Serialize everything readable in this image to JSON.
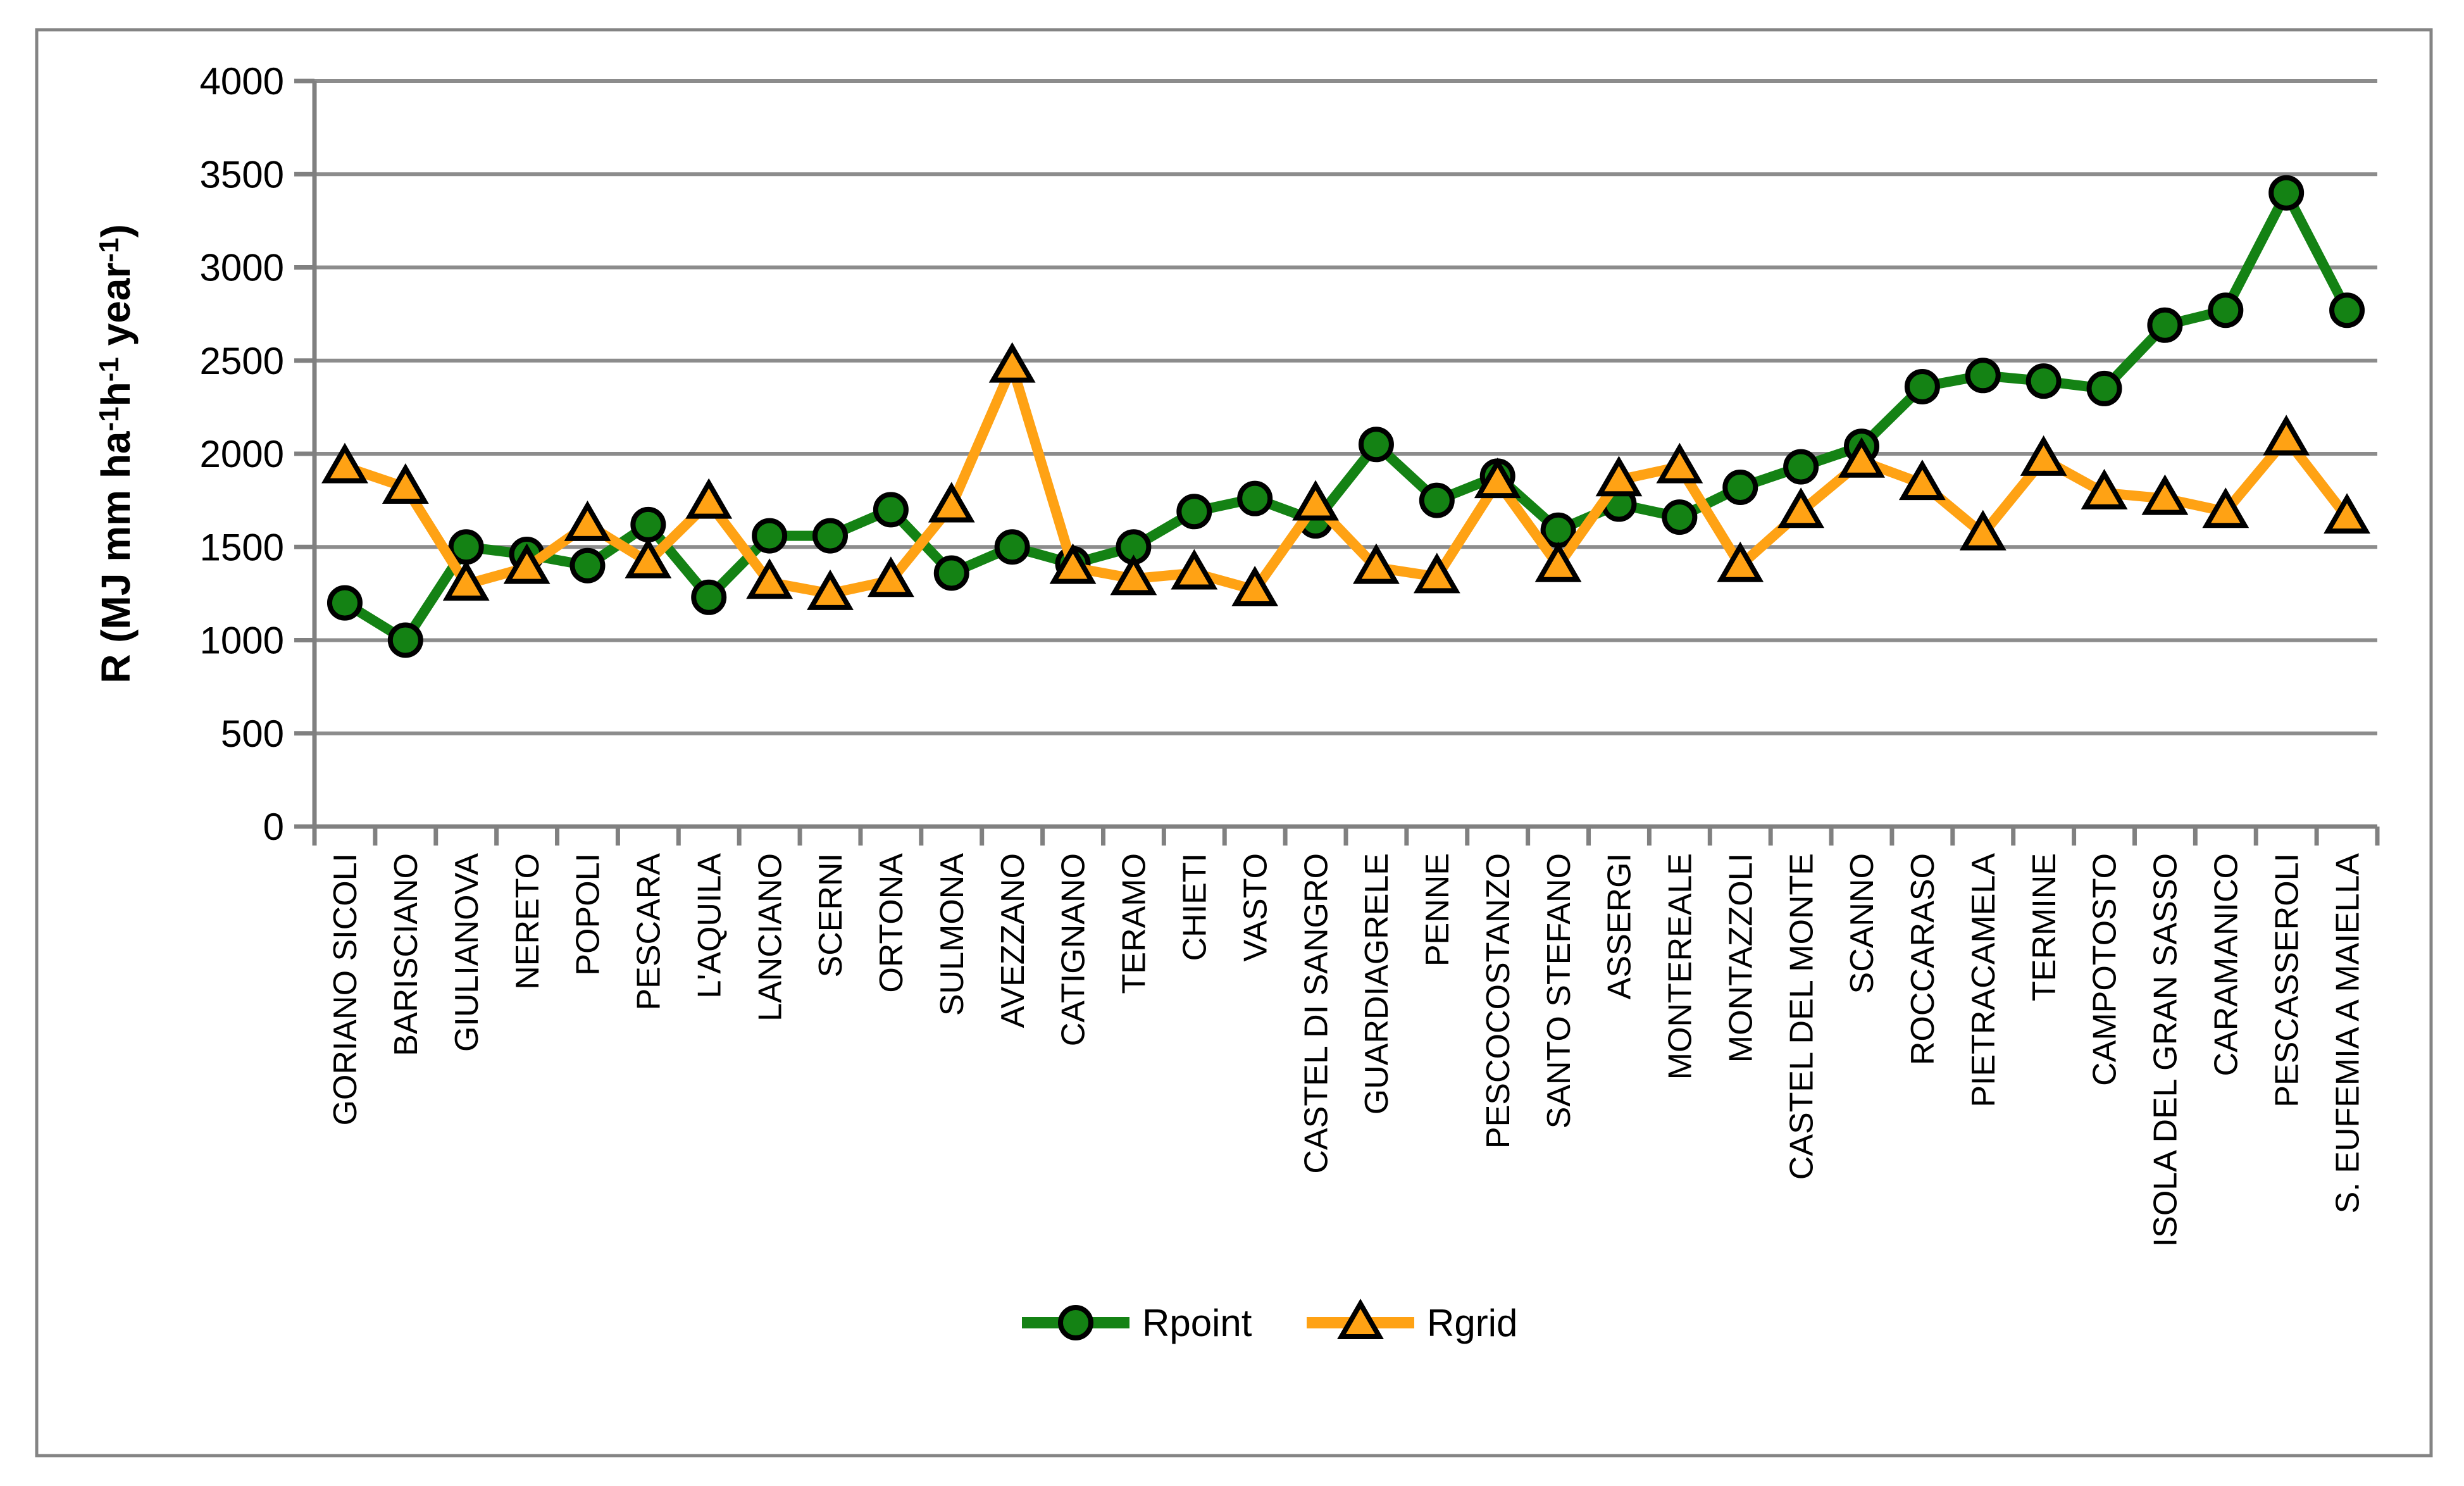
{
  "figure": {
    "background": "#FFFFFF",
    "border_color": "#848484"
  },
  "chart_data": {
    "type": "line",
    "title": "",
    "xlabel": "",
    "ylabel": "R (MJ mm ha-1h-1 year-1)",
    "ylabel_parts": [
      {
        "t": "R (MJ mm ha",
        "sup": false
      },
      {
        "t": "-1",
        "sup": true
      },
      {
        "t": "h",
        "sup": false
      },
      {
        "t": "-1",
        "sup": true
      },
      {
        "t": " year",
        "sup": false
      },
      {
        "t": "-1",
        "sup": true
      },
      {
        "t": ")",
        "sup": false
      }
    ],
    "ylim": [
      0,
      4000
    ],
    "ytick_step": 500,
    "ytick_labels": [
      "0",
      "500",
      "1000",
      "1500",
      "2000",
      "2500",
      "3000",
      "3500",
      "4000"
    ],
    "grid": true,
    "legend_position": "bottom-center",
    "gridline_color": "#8C8C8C",
    "axis_color": "#808080",
    "marker_outline": "#000000",
    "categories": [
      "GORIANO SICOLI",
      "BARISCIANO",
      "GIULIANOVA",
      "NERETO",
      "POPOLI",
      "PESCARA",
      "L'AQUILA",
      "LANCIANO",
      "SCERNI",
      "ORTONA",
      "SULMONA",
      "AVEZZANO",
      "CATIGNANO",
      "TERAMO",
      "CHIETI",
      "VASTO",
      "CASTEL DI SANGRO",
      "GUARDIAGRELE",
      "PENNE",
      "PESCOCOSTANZO",
      "SANTO STEFANO",
      "ASSERGI",
      "MONTEREALE",
      "MONTAZZOLI",
      "CASTEL DEL MONTE",
      "SCANNO",
      "ROCCARASO",
      "PIETRACAMELA",
      "TERMINE",
      "CAMPOTOSTO",
      "ISOLA DEL GRAN SASSO",
      "CARAMANICO",
      "PESCASSEROLI",
      "S. EUFEMIA A MAIELLA"
    ],
    "series": [
      {
        "name": "Rpoint",
        "color": "#148214",
        "marker": "circle",
        "values": [
          1200,
          1000,
          1500,
          1460,
          1400,
          1620,
          1230,
          1560,
          1560,
          1700,
          1360,
          1500,
          1410,
          1500,
          1690,
          1760,
          1640,
          2050,
          1750,
          1880,
          1590,
          1730,
          1660,
          1820,
          1930,
          2040,
          2360,
          2420,
          2390,
          2350,
          2690,
          2770,
          3400,
          2770
        ]
      },
      {
        "name": "Rgrid",
        "color": "#FFA214",
        "marker": "triangle",
        "values": [
          1930,
          1820,
          1300,
          1390,
          1620,
          1420,
          1740,
          1310,
          1250,
          1320,
          1720,
          2470,
          1390,
          1330,
          1360,
          1270,
          1730,
          1390,
          1340,
          1850,
          1400,
          1860,
          1930,
          1400,
          1690,
          1960,
          1840,
          1570,
          1970,
          1790,
          1760,
          1690,
          2080,
          1660
        ]
      }
    ]
  }
}
